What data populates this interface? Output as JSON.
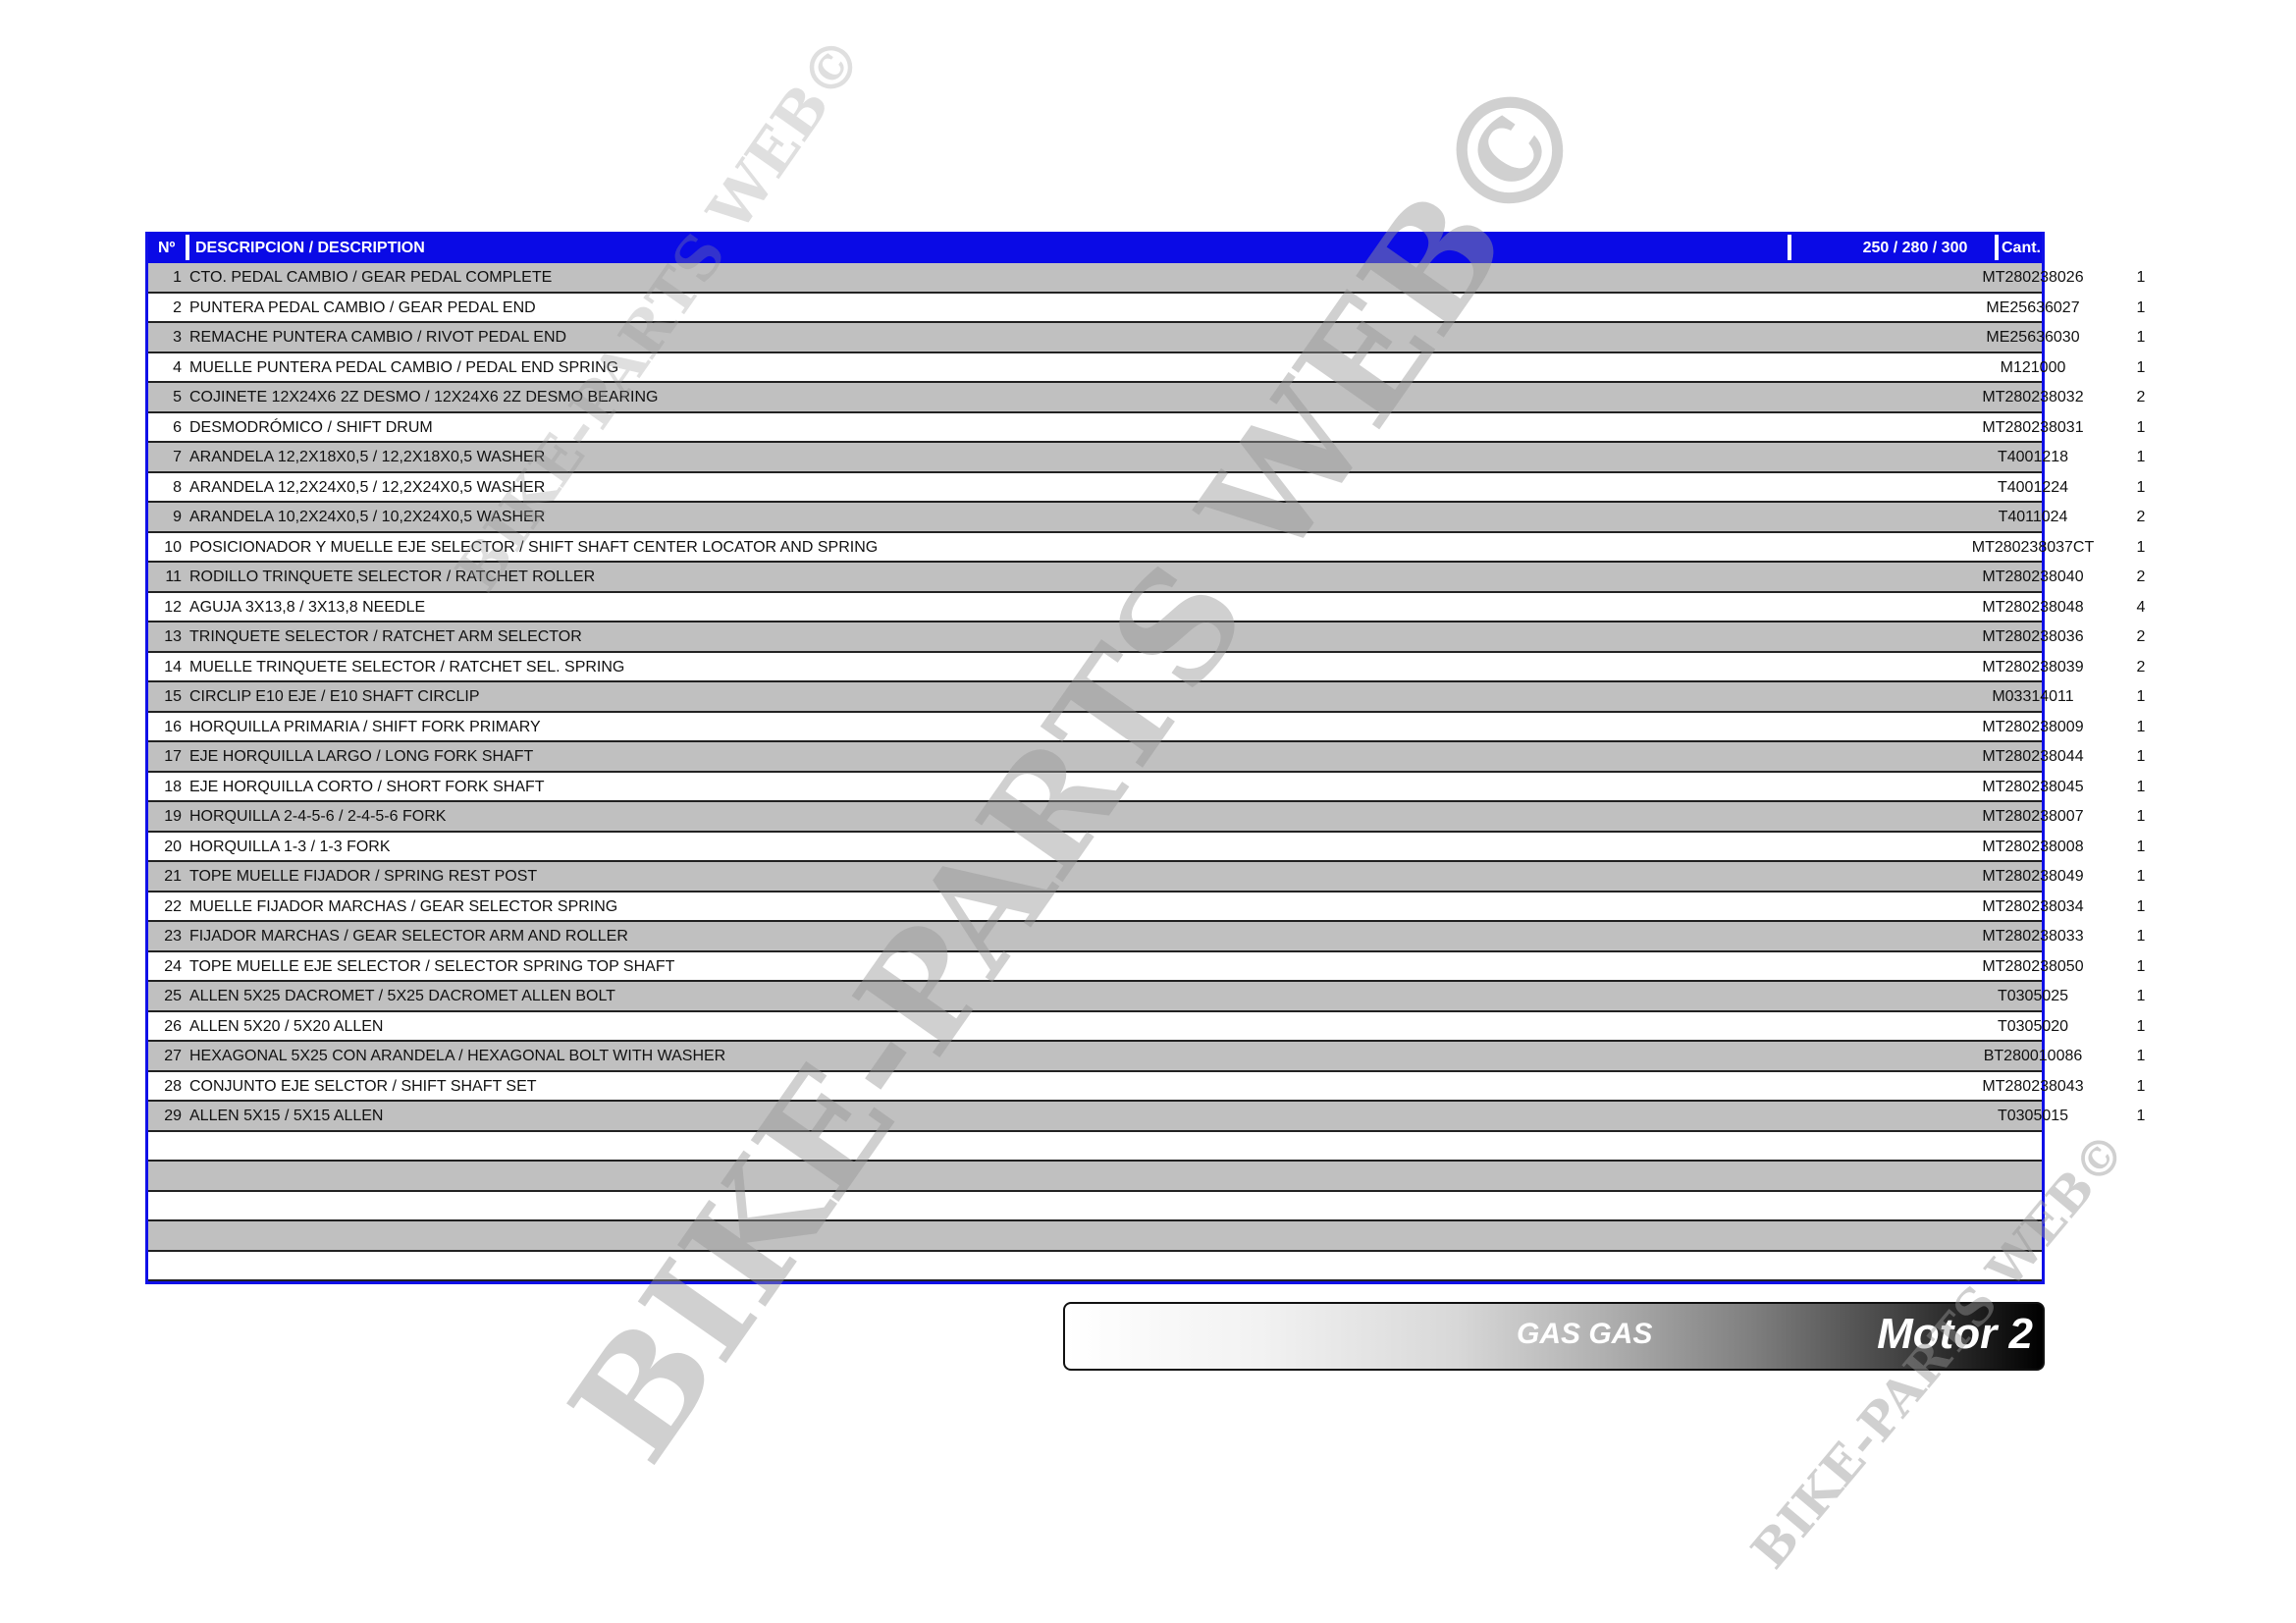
{
  "table": {
    "headers": {
      "num": "Nº",
      "description": "DESCRIPCION / DESCRIPTION",
      "part": "250 / 280 / 300",
      "qty": "Cant."
    },
    "rows": [
      {
        "num": "1",
        "description": "CTO. PEDAL CAMBIO / GEAR PEDAL COMPLETE",
        "part": "MT280238026",
        "qty": "1"
      },
      {
        "num": "2",
        "description": "PUNTERA PEDAL CAMBIO / GEAR PEDAL END",
        "part": "ME25636027",
        "qty": "1"
      },
      {
        "num": "3",
        "description": "REMACHE PUNTERA CAMBIO / RIVOT PEDAL END",
        "part": "ME25636030",
        "qty": "1"
      },
      {
        "num": "4",
        "description": "MUELLE PUNTERA PEDAL CAMBIO / PEDAL END SPRING",
        "part": "M121000",
        "qty": "1"
      },
      {
        "num": "5",
        "description": "COJINETE 12X24X6 2Z DESMO / 12X24X6 2Z DESMO BEARING",
        "part": "MT280238032",
        "qty": "2"
      },
      {
        "num": "6",
        "description": "DESMODRÓMICO / SHIFT DRUM",
        "part": "MT280238031",
        "qty": "1"
      },
      {
        "num": "7",
        "description": "ARANDELA 12,2X18X0,5 / 12,2X18X0,5 WASHER",
        "part": "T4001218",
        "qty": "1"
      },
      {
        "num": "8",
        "description": "ARANDELA 12,2X24X0,5 / 12,2X24X0,5 WASHER",
        "part": "T4001224",
        "qty": "1"
      },
      {
        "num": "9",
        "description": "ARANDELA 10,2X24X0,5 / 10,2X24X0,5 WASHER",
        "part": "T4011024",
        "qty": "2"
      },
      {
        "num": "10",
        "description": "POSICIONADOR Y MUELLE EJE SELECTOR / SHIFT SHAFT CENTER LOCATOR AND SPRING",
        "part": "MT280238037CT",
        "qty": "1"
      },
      {
        "num": "11",
        "description": "RODILLO TRINQUETE SELECTOR / RATCHET ROLLER",
        "part": "MT280238040",
        "qty": "2"
      },
      {
        "num": "12",
        "description": "AGUJA 3X13,8 / 3X13,8 NEEDLE",
        "part": "MT280238048",
        "qty": "4"
      },
      {
        "num": "13",
        "description": "TRINQUETE SELECTOR / RATCHET ARM SELECTOR",
        "part": "MT280238036",
        "qty": "2"
      },
      {
        "num": "14",
        "description": "MUELLE TRINQUETE SELECTOR / RATCHET SEL. SPRING",
        "part": "MT280238039",
        "qty": "2"
      },
      {
        "num": "15",
        "description": "CIRCLIP E10 EJE / E10 SHAFT CIRCLIP",
        "part": "M03314011",
        "qty": "1"
      },
      {
        "num": "16",
        "description": "HORQUILLA PRIMARIA / SHIFT FORK PRIMARY",
        "part": "MT280238009",
        "qty": "1"
      },
      {
        "num": "17",
        "description": "EJE HORQUILLA LARGO / LONG FORK SHAFT",
        "part": "MT280238044",
        "qty": "1"
      },
      {
        "num": "18",
        "description": "EJE HORQUILLA CORTO / SHORT FORK SHAFT",
        "part": "MT280238045",
        "qty": "1"
      },
      {
        "num": "19",
        "description": "HORQUILLA 2-4-5-6 / 2-4-5-6 FORK",
        "part": "MT280238007",
        "qty": "1"
      },
      {
        "num": "20",
        "description": "HORQUILLA 1-3 / 1-3 FORK",
        "part": "MT280238008",
        "qty": "1"
      },
      {
        "num": "21",
        "description": "TOPE MUELLE FIJADOR / SPRING REST POST",
        "part": "MT280238049",
        "qty": "1"
      },
      {
        "num": "22",
        "description": "MUELLE FIJADOR MARCHAS / GEAR SELECTOR SPRING",
        "part": "MT280238034",
        "qty": "1"
      },
      {
        "num": "23",
        "description": "FIJADOR MARCHAS / GEAR SELECTOR ARM AND ROLLER",
        "part": "MT280238033",
        "qty": "1"
      },
      {
        "num": "24",
        "description": "TOPE MUELLE EJE SELECTOR / SELECTOR SPRING TOP SHAFT",
        "part": "MT280238050",
        "qty": "1"
      },
      {
        "num": "25",
        "description": "ALLEN 5X25 DACROMET / 5X25 DACROMET ALLEN  BOLT",
        "part": "T0305025",
        "qty": "1"
      },
      {
        "num": "26",
        "description": "ALLEN 5X20 / 5X20 ALLEN",
        "part": "T0305020",
        "qty": "1"
      },
      {
        "num": "27",
        "description": "HEXAGONAL 5X25 CON ARANDELA / HEXAGONAL BOLT WITH WASHER",
        "part": "BT280010086",
        "qty": "1"
      },
      {
        "num": "28",
        "description": "CONJUNTO EJE SELCTOR / SHIFT SHAFT SET",
        "part": "MT280238043",
        "qty": "1"
      },
      {
        "num": "29",
        "description": "ALLEN 5X15 / 5X15 ALLEN",
        "part": "T0305015",
        "qty": "1"
      },
      {
        "num": "",
        "description": "",
        "part": "",
        "qty": ""
      },
      {
        "num": "",
        "description": "",
        "part": "",
        "qty": ""
      },
      {
        "num": "",
        "description": "",
        "part": "",
        "qty": ""
      },
      {
        "num": "",
        "description": "",
        "part": "",
        "qty": ""
      },
      {
        "num": "",
        "description": "",
        "part": "",
        "qty": ""
      }
    ]
  },
  "banner": {
    "brand": "GAS GAS",
    "model": "Motor 2"
  },
  "watermark": "BIKE-PARTS WEB©",
  "colors": {
    "header": "#0a0ae6",
    "row_alt": "#c0c0c0"
  }
}
